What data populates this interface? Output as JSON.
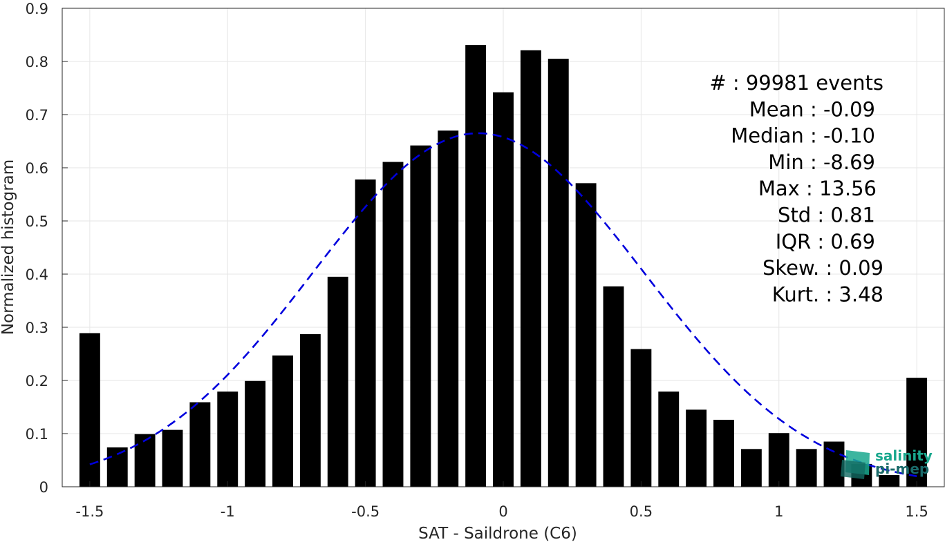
{
  "chart_data": {
    "type": "bar",
    "title": "",
    "xlabel": "SAT - Saildrone (C6)",
    "ylabel": "Normalized histogram",
    "xlim": [
      -1.6,
      1.6
    ],
    "ylim": [
      0,
      0.9
    ],
    "grid": true,
    "x_ticks": [
      -1.5,
      -1,
      -0.5,
      0,
      0.5,
      1,
      1.5
    ],
    "x_tick_labels": [
      "-1.5",
      "-1",
      "-0.5",
      "0",
      "0.5",
      "1",
      "1.5"
    ],
    "y_ticks": [
      0,
      0.1,
      0.2,
      0.3,
      0.4,
      0.5,
      0.6,
      0.7,
      0.8,
      0.9
    ],
    "y_tick_labels": [
      "0",
      "0.1",
      "0.2",
      "0.3",
      "0.4",
      "0.5",
      "0.6",
      "0.7",
      "0.8",
      "0.9"
    ],
    "bar_color": "#000000",
    "x": [
      -1.5,
      -1.4,
      -1.3,
      -1.2,
      -1.1,
      -1.0,
      -0.9,
      -0.8,
      -0.7,
      -0.6,
      -0.5,
      -0.4,
      -0.3,
      -0.2,
      -0.1,
      0.0,
      0.1,
      0.2,
      0.3,
      0.4,
      0.5,
      0.6,
      0.7,
      0.8,
      0.9,
      1.0,
      1.1,
      1.2,
      1.3,
      1.4,
      1.5
    ],
    "values": [
      0.289,
      0.074,
      0.099,
      0.107,
      0.159,
      0.179,
      0.199,
      0.247,
      0.287,
      0.395,
      0.578,
      0.611,
      0.642,
      0.67,
      0.831,
      0.742,
      0.821,
      0.805,
      0.571,
      0.377,
      0.259,
      0.179,
      0.145,
      0.126,
      0.071,
      0.101,
      0.071,
      0.085,
      0.043,
      0.022,
      0.205
    ],
    "bar_width": 0.075,
    "fit_curve": {
      "type": "gaussian",
      "mean": -0.09,
      "std": 0.6,
      "peak": 0.665,
      "color": "#0000dd",
      "style": "dashed",
      "x_range": [
        -1.5,
        1.5
      ]
    },
    "annotations": [
      {
        "label": "#  ",
        "value": ": 99981 events"
      },
      {
        "label": "Mean ",
        "value": ": -0.09"
      },
      {
        "label": "Median ",
        "value": ": -0.10"
      },
      {
        "label": "Min ",
        "value": ": -8.69"
      },
      {
        "label": "Max ",
        "value": ": 13.56"
      },
      {
        "label": "Std ",
        "value": ": 0.81"
      },
      {
        "label": "IQR ",
        "value": ": 0.69"
      },
      {
        "label": "Skew. ",
        "value": ": 0.09"
      },
      {
        "label": "Kurt. ",
        "value": ": 3.48"
      }
    ]
  },
  "logo": {
    "line1": "salinity",
    "line2": "pi-mep",
    "color1": "#1aa88e",
    "color2": "#1a6a6a"
  }
}
